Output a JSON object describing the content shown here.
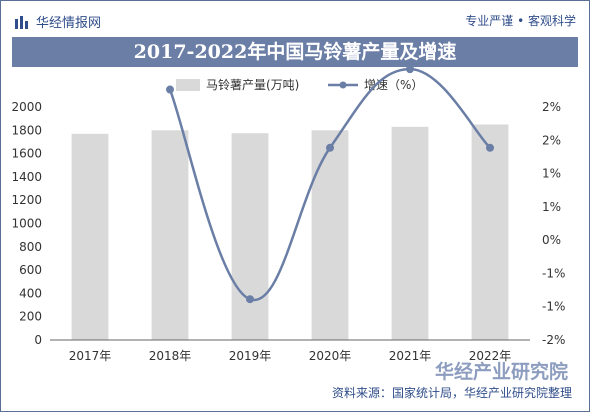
{
  "header": {
    "brand": "华经情报网",
    "slogan": "专业严谨 • 客观科学"
  },
  "chart_data": {
    "type": "bar",
    "title": "2017-2022年中国马铃薯产量及增速",
    "categories": [
      "2017年",
      "2018年",
      "2019年",
      "2020年",
      "2021年",
      "2022年"
    ],
    "series": [
      {
        "name": "马铃薯产量(万吨)",
        "type": "bar",
        "axis": "left",
        "values": [
          1770,
          1800,
          1775,
          1800,
          1830,
          1850
        ]
      },
      {
        "name": "增速（%）",
        "type": "line",
        "axis": "right",
        "values": [
          null,
          2.3,
          -1.3,
          1.3,
          2.65,
          1.3
        ]
      }
    ],
    "y_left": {
      "min": 0,
      "max": 2000,
      "ticks": [
        "0",
        "200",
        "400",
        "600",
        "800",
        "1000",
        "1200",
        "1400",
        "1600",
        "1800",
        "2000"
      ]
    },
    "y_right": {
      "min": -2,
      "max": 2,
      "ticks": [
        "-2%",
        "-1%",
        "-1%",
        "0%",
        "1%",
        "1%",
        "2%",
        "2%"
      ]
    },
    "colors": {
      "bar": "#d9d9d9",
      "line": "#6b7ea6",
      "title_bg": "#6b7ea6",
      "brand": "#2f4d8a"
    }
  },
  "footer": {
    "source": "资料来源：国家统计局，华经产业研究院整理",
    "watermark": "华经产业研究院"
  }
}
